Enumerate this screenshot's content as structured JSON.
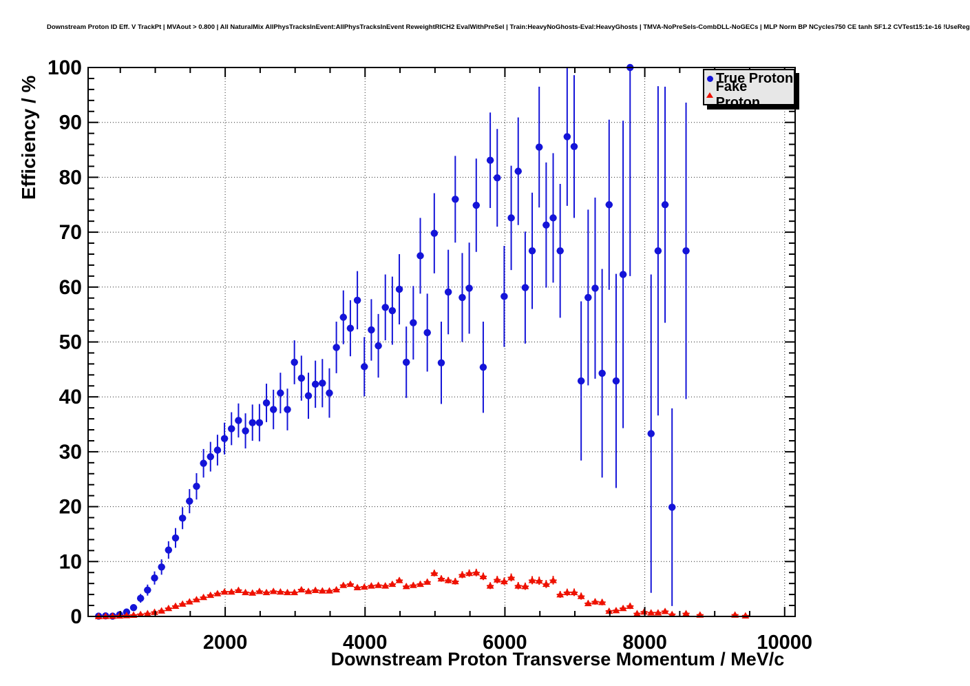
{
  "title": "Downstream Proton ID Eff. V TrackPt | MVAout > 0.800 | All NaturalMix AllPhysTracksInEvent:AllPhysTracksInEvent ReweightRICH2 EvalWithPreSel | Train:HeavyNoGhosts-Eval:HeavyGhosts | TMVA-NoPreSels-CombDLL-NoGECs | MLP Norm BP NCycles750 CE tanh SF1.2 CVTest15:1e-16 !UseReg",
  "legend": {
    "position": "top-right",
    "entries": [
      {
        "label": "True Proton",
        "marker": "circle",
        "color": "#1414d8"
      },
      {
        "label": "Fake Proton",
        "marker": "triangle",
        "color": "#ee1100"
      }
    ]
  },
  "chart_data": {
    "type": "scatter",
    "title": "Downstream Proton ID Eff. V TrackPt",
    "xlabel": "Downstream Proton Transverse Momentum / MeV/c",
    "ylabel": "Efficiency / %",
    "xlim": [
      40,
      10150
    ],
    "ylim": [
      0,
      100
    ],
    "x_major_ticks": [
      2000,
      4000,
      6000,
      8000,
      10000
    ],
    "x_minor_step": 500,
    "y_major_step": 10,
    "y_minor_step": 2,
    "grid": "dotted",
    "grid_color": "#222222",
    "frame_color": "#000000",
    "x_bin_half_width": 50,
    "legend_position": "top-right",
    "series": [
      {
        "name": "True Proton",
        "marker": "circle",
        "color": "#1414d8",
        "points": [
          [
            190,
            0.05,
            0.1
          ],
          [
            290,
            0.1,
            0.12
          ],
          [
            390,
            0.05,
            0.1
          ],
          [
            490,
            0.3,
            0.2
          ],
          [
            590,
            0.8,
            0.35
          ],
          [
            690,
            1.6,
            0.5
          ],
          [
            790,
            3.3,
            0.8
          ],
          [
            890,
            4.8,
            1.0
          ],
          [
            990,
            7.0,
            1.2
          ],
          [
            1090,
            9.0,
            1.4
          ],
          [
            1190,
            12.1,
            1.6
          ],
          [
            1290,
            14.3,
            1.8
          ],
          [
            1390,
            17.9,
            2.0
          ],
          [
            1490,
            21.0,
            2.2
          ],
          [
            1590,
            23.7,
            2.4
          ],
          [
            1690,
            27.9,
            2.6
          ],
          [
            1790,
            29.1,
            2.7
          ],
          [
            1890,
            30.3,
            2.8
          ],
          [
            1990,
            32.4,
            2.9
          ],
          [
            2090,
            34.2,
            3.0
          ],
          [
            2190,
            35.7,
            3.1
          ],
          [
            2290,
            33.8,
            3.2
          ],
          [
            2390,
            35.3,
            3.3
          ],
          [
            2490,
            35.3,
            3.4
          ],
          [
            2590,
            38.9,
            3.5
          ],
          [
            2690,
            37.7,
            3.6
          ],
          [
            2790,
            40.7,
            3.7
          ],
          [
            2890,
            37.7,
            3.8
          ],
          [
            2990,
            46.3,
            4.0
          ],
          [
            3090,
            43.4,
            4.1
          ],
          [
            3190,
            40.2,
            4.2
          ],
          [
            3290,
            42.3,
            4.3
          ],
          [
            3390,
            42.5,
            4.4
          ],
          [
            3490,
            40.7,
            4.5
          ],
          [
            3590,
            49.0,
            4.7
          ],
          [
            3690,
            54.5,
            4.9
          ],
          [
            3790,
            52.5,
            5.1
          ],
          [
            3890,
            57.6,
            5.3
          ],
          [
            3990,
            45.5,
            5.4
          ],
          [
            4090,
            52.2,
            5.6
          ],
          [
            4190,
            49.3,
            5.8
          ],
          [
            4290,
            56.3,
            6.0
          ],
          [
            4390,
            55.7,
            6.2
          ],
          [
            4490,
            59.6,
            6.4
          ],
          [
            4590,
            46.3,
            6.5
          ],
          [
            4690,
            53.5,
            6.7
          ],
          [
            4790,
            65.7,
            6.9
          ],
          [
            4890,
            51.7,
            7.1
          ],
          [
            4990,
            69.8,
            7.3
          ],
          [
            5090,
            46.2,
            7.5
          ],
          [
            5190,
            59.1,
            7.7
          ],
          [
            5290,
            76.0,
            7.9
          ],
          [
            5390,
            58.1,
            8.1
          ],
          [
            5490,
            59.8,
            8.3
          ],
          [
            5590,
            74.9,
            8.5
          ],
          [
            5690,
            45.4,
            8.3
          ],
          [
            5790,
            83.1,
            8.7
          ],
          [
            5890,
            79.9,
            8.9
          ],
          [
            5990,
            58.3,
            9.2
          ],
          [
            6090,
            72.6,
            9.5
          ],
          [
            6190,
            81.1,
            9.8
          ],
          [
            6290,
            59.9,
            10.2
          ],
          [
            6390,
            66.6,
            10.6
          ],
          [
            6490,
            85.5,
            11.0
          ],
          [
            6590,
            71.3,
            11.4
          ],
          [
            6690,
            72.6,
            11.8
          ],
          [
            6790,
            66.6,
            12.2
          ],
          [
            6890,
            87.4,
            12.6
          ],
          [
            6990,
            85.6,
            13.0
          ],
          [
            7090,
            42.9,
            14.5
          ],
          [
            7190,
            58.1,
            16.0
          ],
          [
            7290,
            59.8,
            16.5
          ],
          [
            7390,
            44.3,
            19.0
          ],
          [
            7490,
            75.0,
            15.5
          ],
          [
            7590,
            42.9,
            19.5
          ],
          [
            7690,
            62.3,
            28.0
          ],
          [
            7790,
            100.0,
            38.0
          ],
          [
            8090,
            33.3,
            29.0
          ],
          [
            8190,
            66.6,
            30.0
          ],
          [
            8290,
            75.0,
            21.5
          ],
          [
            8390,
            19.9,
            18.0
          ],
          [
            8590,
            66.6,
            27.0
          ]
        ]
      },
      {
        "name": "Fake Proton",
        "marker": "triangle",
        "color": "#ee1100",
        "points": [
          [
            190,
            0.02,
            0.05
          ],
          [
            290,
            0.05,
            0.05
          ],
          [
            390,
            0.08,
            0.06
          ],
          [
            490,
            0.13,
            0.07
          ],
          [
            590,
            0.2,
            0.08
          ],
          [
            690,
            0.28,
            0.09
          ],
          [
            790,
            0.4,
            0.1
          ],
          [
            890,
            0.55,
            0.12
          ],
          [
            990,
            0.8,
            0.14
          ],
          [
            1090,
            1.05,
            0.16
          ],
          [
            1190,
            1.5,
            0.18
          ],
          [
            1290,
            1.9,
            0.2
          ],
          [
            1390,
            2.3,
            0.22
          ],
          [
            1490,
            2.7,
            0.24
          ],
          [
            1590,
            3.1,
            0.26
          ],
          [
            1690,
            3.5,
            0.27
          ],
          [
            1790,
            3.9,
            0.28
          ],
          [
            1890,
            4.2,
            0.29
          ],
          [
            1990,
            4.5,
            0.3
          ],
          [
            2090,
            4.5,
            0.3
          ],
          [
            2190,
            4.8,
            0.31
          ],
          [
            2290,
            4.4,
            0.31
          ],
          [
            2390,
            4.3,
            0.31
          ],
          [
            2490,
            4.6,
            0.32
          ],
          [
            2590,
            4.4,
            0.32
          ],
          [
            2690,
            4.6,
            0.33
          ],
          [
            2790,
            4.5,
            0.33
          ],
          [
            2890,
            4.4,
            0.34
          ],
          [
            2990,
            4.4,
            0.34
          ],
          [
            3090,
            4.9,
            0.35
          ],
          [
            3190,
            4.6,
            0.36
          ],
          [
            3290,
            4.8,
            0.37
          ],
          [
            3390,
            4.7,
            0.37
          ],
          [
            3490,
            4.7,
            0.38
          ],
          [
            3590,
            4.9,
            0.39
          ],
          [
            3690,
            5.7,
            0.41
          ],
          [
            3790,
            5.9,
            0.42
          ],
          [
            3890,
            5.3,
            0.42
          ],
          [
            3990,
            5.4,
            0.43
          ],
          [
            4090,
            5.6,
            0.44
          ],
          [
            4190,
            5.7,
            0.45
          ],
          [
            4290,
            5.6,
            0.46
          ],
          [
            4390,
            5.9,
            0.47
          ],
          [
            4490,
            6.6,
            0.5
          ],
          [
            4590,
            5.5,
            0.48
          ],
          [
            4690,
            5.7,
            0.5
          ],
          [
            4790,
            5.9,
            0.52
          ],
          [
            4890,
            6.3,
            0.54
          ],
          [
            4990,
            7.9,
            0.6
          ],
          [
            5090,
            6.9,
            0.58
          ],
          [
            5190,
            6.6,
            0.58
          ],
          [
            5290,
            6.4,
            0.6
          ],
          [
            5390,
            7.6,
            0.64
          ],
          [
            5490,
            7.9,
            0.66
          ],
          [
            5590,
            8.0,
            0.68
          ],
          [
            5690,
            7.3,
            0.68
          ],
          [
            5790,
            5.6,
            0.62
          ],
          [
            5890,
            6.7,
            0.68
          ],
          [
            5990,
            6.4,
            0.68
          ],
          [
            6090,
            7.1,
            0.72
          ],
          [
            6190,
            5.6,
            0.66
          ],
          [
            6290,
            5.5,
            0.66
          ],
          [
            6390,
            6.6,
            0.74
          ],
          [
            6490,
            6.5,
            0.74
          ],
          [
            6590,
            5.9,
            0.72
          ],
          [
            6690,
            6.6,
            0.78
          ],
          [
            6790,
            4.0,
            0.62
          ],
          [
            6890,
            4.4,
            0.66
          ],
          [
            6990,
            4.4,
            0.68
          ],
          [
            7090,
            3.7,
            0.64
          ],
          [
            7190,
            2.4,
            0.52
          ],
          [
            7290,
            2.7,
            0.56
          ],
          [
            7390,
            2.6,
            0.58
          ],
          [
            7490,
            1.0,
            0.36
          ],
          [
            7590,
            1.1,
            0.4
          ],
          [
            7690,
            1.5,
            0.48
          ],
          [
            7790,
            1.9,
            0.56
          ],
          [
            7890,
            0.55,
            0.3
          ],
          [
            7990,
            0.85,
            0.38
          ],
          [
            8090,
            0.7,
            0.36
          ],
          [
            8190,
            0.7,
            0.38
          ],
          [
            8290,
            0.95,
            0.44
          ],
          [
            8390,
            0.4,
            0.3
          ],
          [
            8590,
            0.55,
            0.36
          ],
          [
            8790,
            0.3,
            0.28
          ],
          [
            9290,
            0.3,
            0.3
          ],
          [
            9440,
            0.15,
            0.2
          ]
        ]
      }
    ]
  }
}
